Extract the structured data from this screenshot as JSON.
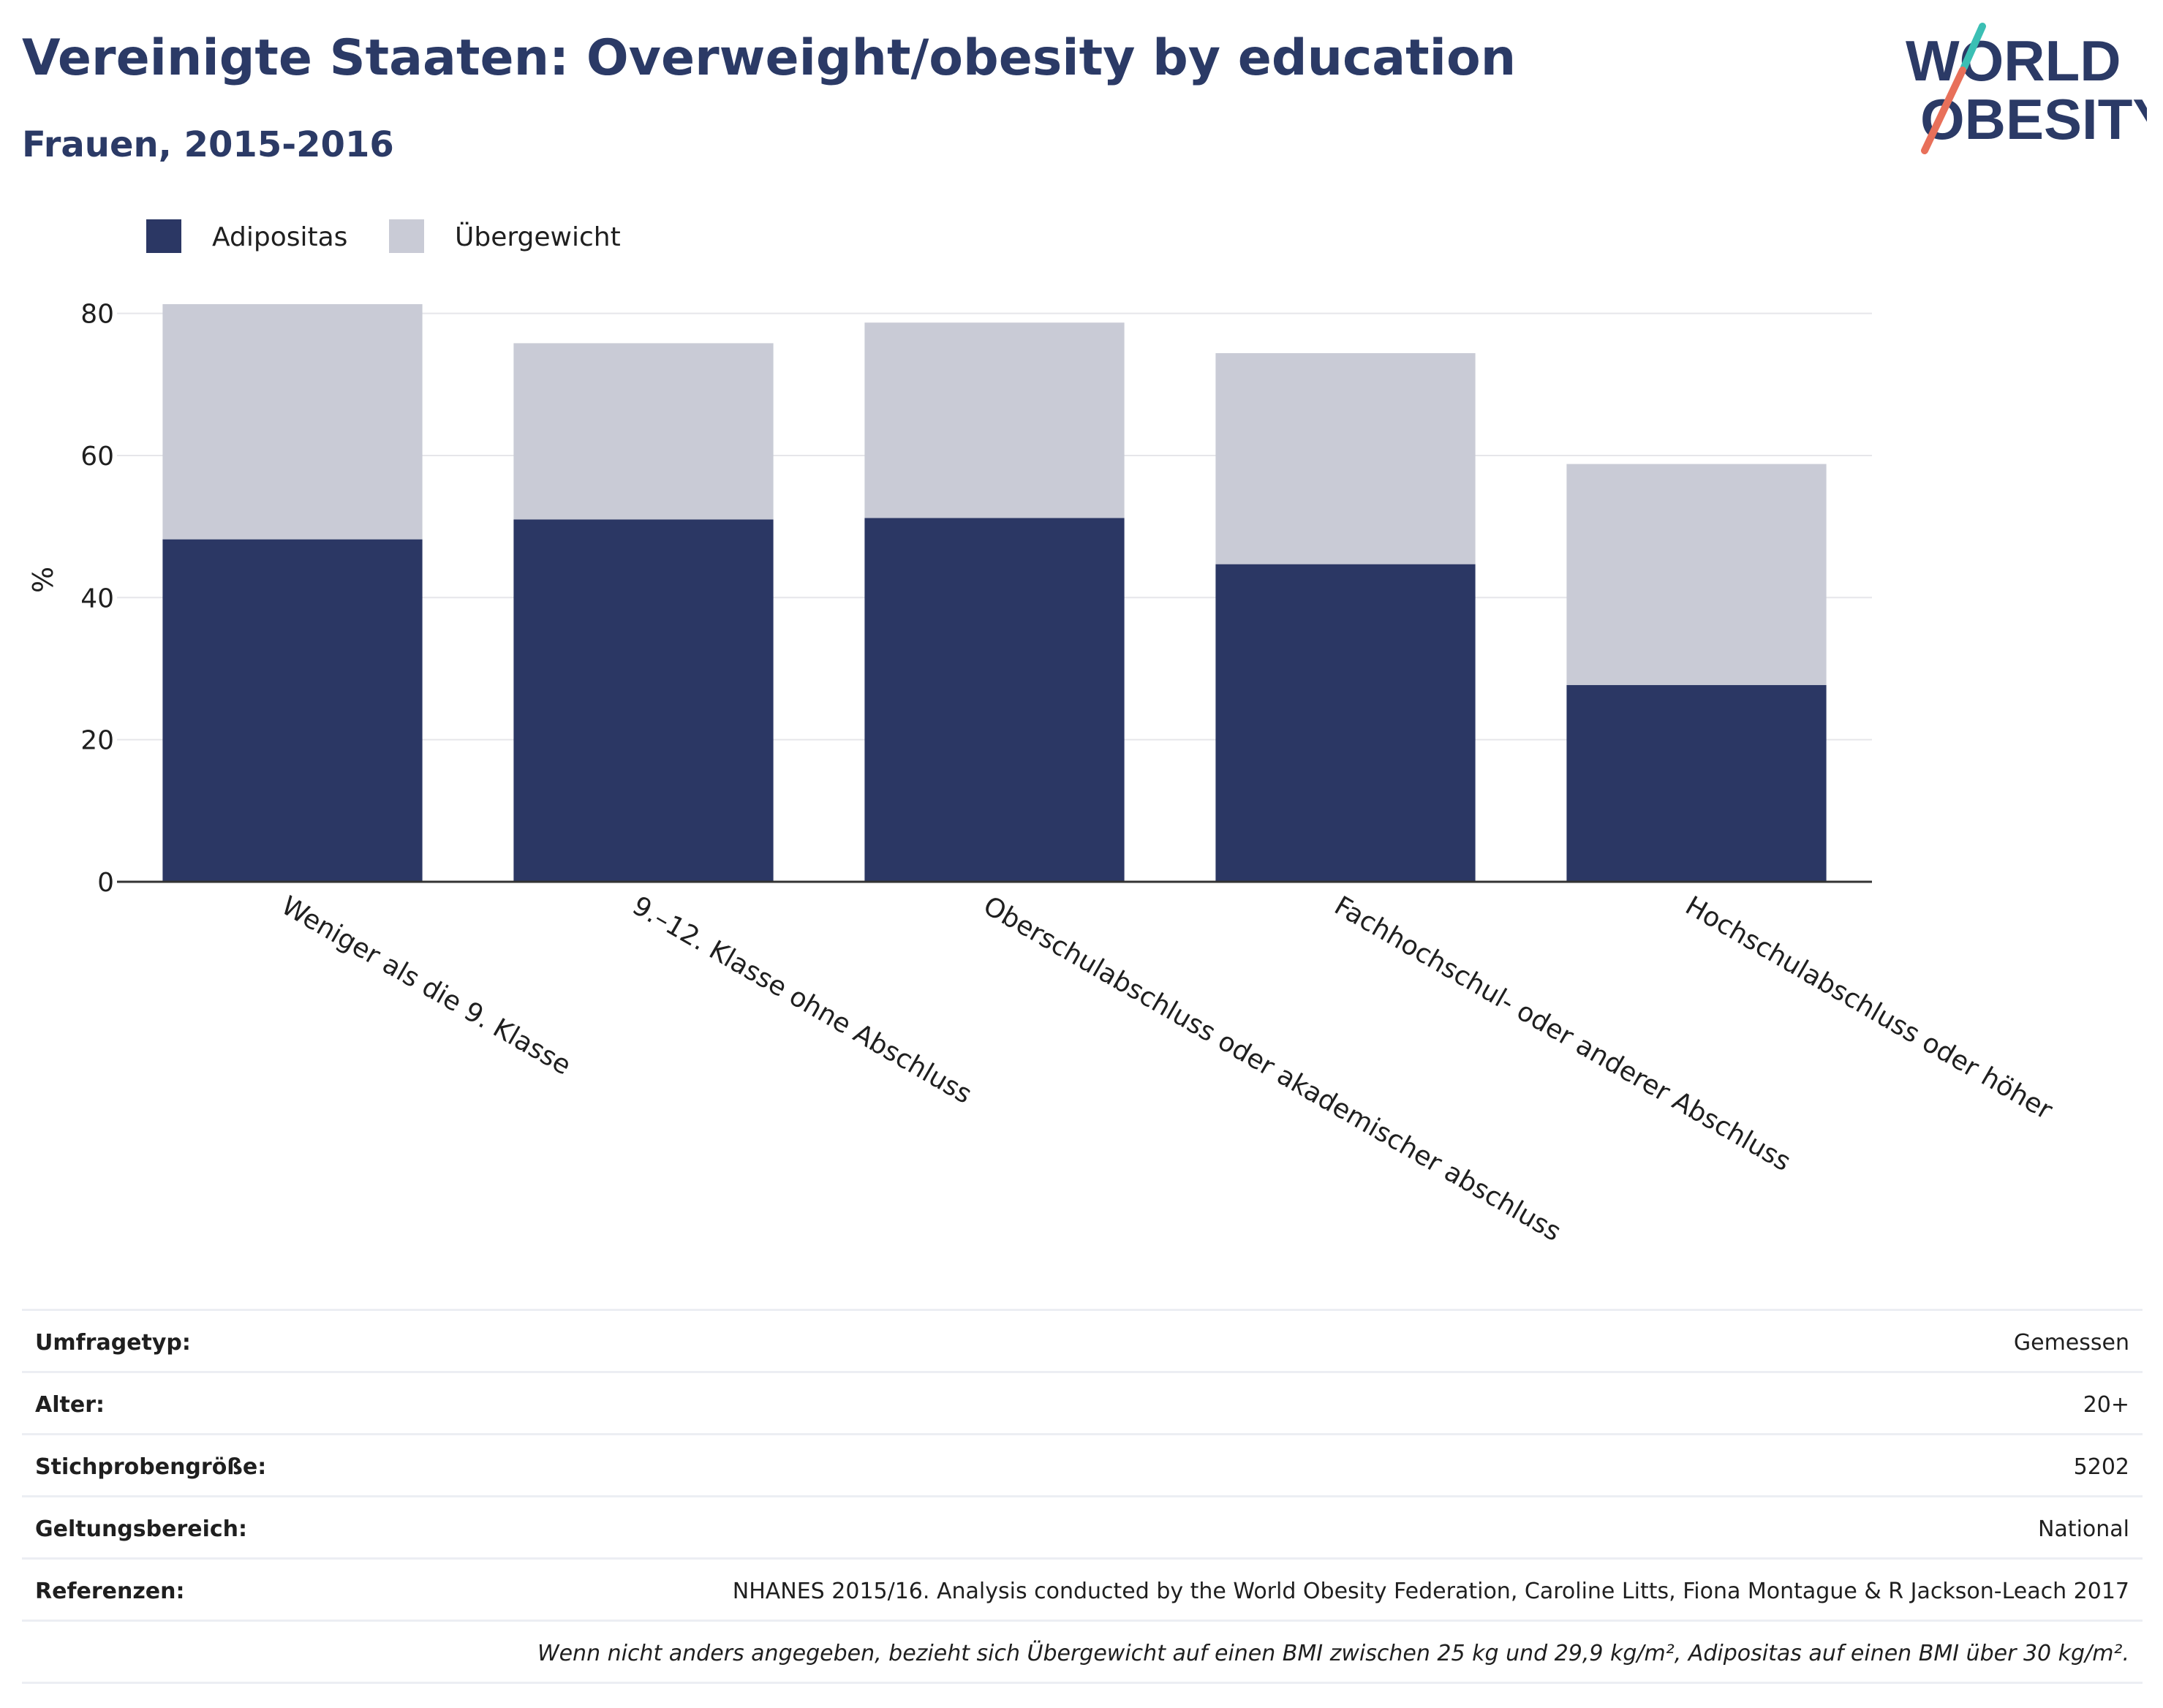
{
  "header": {
    "title": "Vereinigte Staaten: Overweight/obesity by education",
    "subtitle": "Frauen, 2015-2016"
  },
  "logo": {
    "line1": "WORLD",
    "line2": "OBESITY"
  },
  "colors": {
    "obesity": "#2b3764",
    "overweight": "#c9cbd6",
    "accent_teal": "#3bbfb4",
    "accent_coral": "#e8705a",
    "brand": "#2b3a66"
  },
  "chart_data": {
    "type": "bar",
    "stacked": true,
    "categories": [
      "Weniger als die 9. Klasse",
      "9.–12. Klasse ohne Abschluss",
      "Oberschulabschluss oder akademischer abschluss",
      "Fachhochschul- oder anderer Abschluss",
      "Hochschulabschluss oder höher"
    ],
    "series": [
      {
        "name": "Adipositas",
        "values": [
          48.2,
          51.0,
          51.2,
          44.7,
          27.7
        ]
      },
      {
        "name": "Übergewicht",
        "values": [
          33.1,
          24.8,
          27.5,
          29.7,
          31.1
        ]
      }
    ],
    "ylabel": "%",
    "xlabel": "",
    "ylim": [
      0,
      85
    ],
    "yticks": [
      0,
      20,
      40,
      60,
      80
    ],
    "grid": true,
    "legend_position": "top-left"
  },
  "table": [
    {
      "key": "Umfragetyp:",
      "value": "Gemessen"
    },
    {
      "key": "Alter:",
      "value": "20+"
    },
    {
      "key": "Stichprobengröße:",
      "value": "5202"
    },
    {
      "key": "Geltungsbereich:",
      "value": "National"
    },
    {
      "key": "Referenzen:",
      "value": "NHANES 2015/16. Analysis conducted by the World Obesity Federation, Caroline Litts, Fiona Montague & R Jackson-Leach 2017"
    }
  ],
  "note": "Wenn nicht anders angegeben, bezieht sich Übergewicht auf einen BMI zwischen 25 kg und 29,9 kg/m², Adipositas auf einen BMI über 30 kg/m²."
}
